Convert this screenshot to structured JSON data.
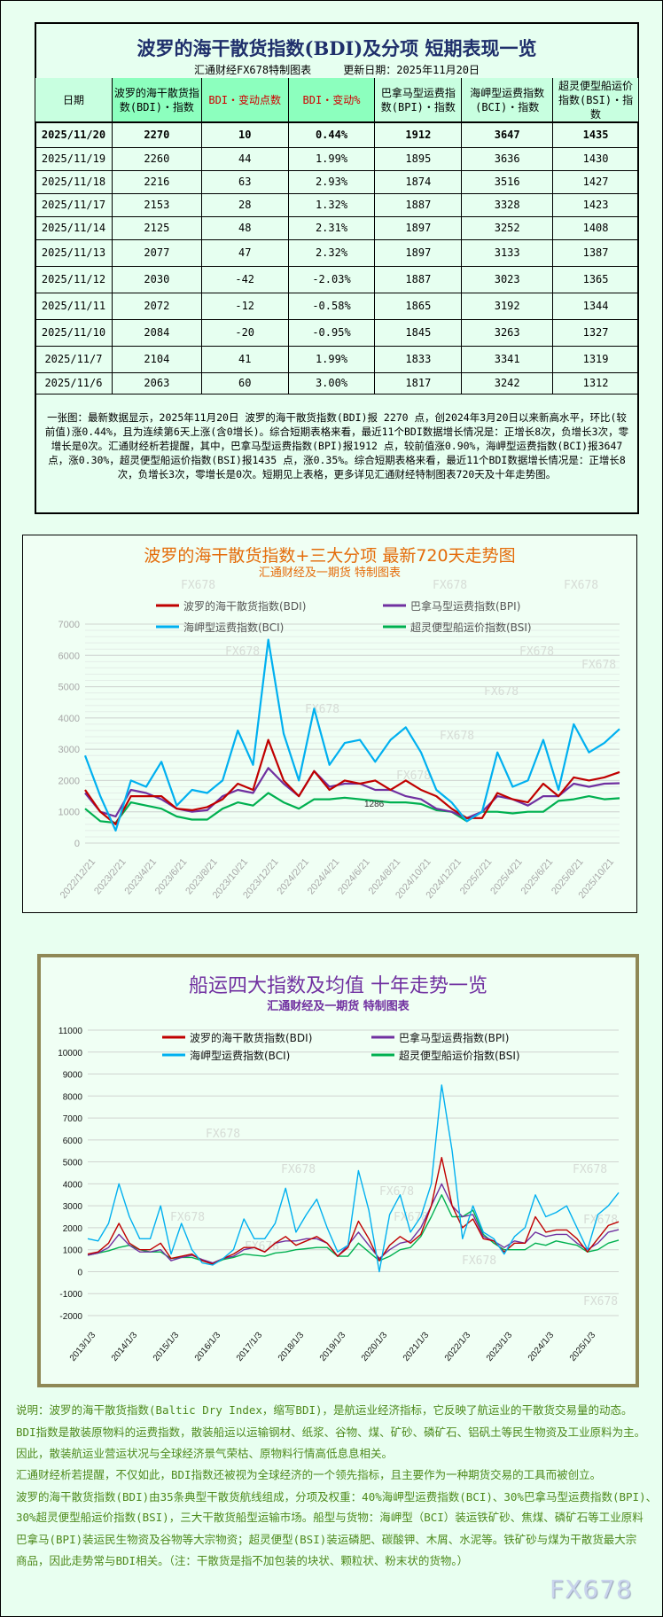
{
  "table": {
    "title": "波罗的海干散货指数(BDI)及分项 短期表现一览",
    "subtitle": "汇通财经FX678特制图表     更新日期：2025年11月20日",
    "headers": [
      "日期",
      "波罗的海干散货指数(BDI)・指数",
      "BDI・变动点数",
      "BDI・变动%",
      "巴拿马型运费指数(BPI)・指数",
      "海岬型运费指数(BCI)・指数",
      "超灵便型船运价指数(BSI)・指数"
    ],
    "rows": [
      [
        "2025/11/20",
        "2270",
        "10",
        "0.44%",
        "1912",
        "3647",
        "1435"
      ],
      [
        "2025/11/19",
        "2260",
        "44",
        "1.99%",
        "1895",
        "3636",
        "1430"
      ],
      [
        "2025/11/18",
        "2216",
        "63",
        "2.93%",
        "1874",
        "3516",
        "1427"
      ],
      [
        "2025/11/17",
        "2153",
        "28",
        "1.32%",
        "1887",
        "3328",
        "1423"
      ],
      [
        "2025/11/14",
        "2125",
        "48",
        "2.31%",
        "1897",
        "3252",
        "1408"
      ],
      [
        "2025/11/13",
        "2077",
        "47",
        "2.32%",
        "1897",
        "3133",
        "1387"
      ],
      [
        "2025/11/12",
        "2030",
        "-42",
        "-2.03%",
        "1887",
        "3023",
        "1365"
      ],
      [
        "2025/11/11",
        "2072",
        "-12",
        "-0.58%",
        "1865",
        "3192",
        "1344"
      ],
      [
        "2025/11/10",
        "2084",
        "-20",
        "-0.95%",
        "1845",
        "3263",
        "1327"
      ],
      [
        "2025/11/7",
        "2104",
        "41",
        "1.99%",
        "1833",
        "3341",
        "1319"
      ],
      [
        "2025/11/6",
        "2063",
        "60",
        "3.00%",
        "1817",
        "3242",
        "1312"
      ]
    ],
    "note": "一张图：最新数据显示，2025年11月20日 波罗的海干散货指数(BDI)报 2270 点，创2024年3月20日以来新高水平，环比(较前值)涨0.44%，且为连续第6天上涨(含0增长)。综合短期表格来看，最近11个BDI数据增长情况是：正增长8次，负增长3次，零增长是0次。汇通财经析若提醒，其中，巴拿马型运费指数(BPI)报1912 点，较前值涨0.90%，海岬型运费指数(BCI)报3647 点，涨0.30%，超灵便型船运价指数(BSI)报1435 点，涨0.35%。综合短期表格来看，最近11个BDI数据增长情况是：正增长8次，负增长3次，零增长是0次。短期见上表格，更多详见汇通财经特制图表720天及十年走势图。"
  },
  "colors": {
    "BDI": "#c00000",
    "BPI": "#7030a0",
    "BCI": "#00b0f0",
    "BSI": "#00b050"
  },
  "chart_data": [
    {
      "type": "line",
      "title": "波罗的海干散货指数+三大分项  最新720天走势图",
      "subtitle": "汇通财经及一期货  特制图表",
      "watermark": "FX678",
      "annotation": "1286",
      "ylim": [
        0,
        7000
      ],
      "yticks": [
        "0",
        "1000",
        "2000",
        "3000",
        "4000",
        "5000",
        "6000",
        "7000"
      ],
      "xticks": [
        "2022/12/21",
        "2023/2/21",
        "2023/4/21",
        "2023/6/21",
        "2023/8/21",
        "2023/10/21",
        "2023/12/21",
        "2024/2/21",
        "2024/4/21",
        "2024/6/21",
        "2024/8/21",
        "2024/10/21",
        "2024/12/21",
        "2025/2/21",
        "2025/4/21",
        "2025/6/21",
        "2025/8/21",
        "2025/10/21"
      ],
      "grid": true,
      "legend": "top",
      "x": [
        "2022-12",
        "2023-01",
        "2023-02",
        "2023-03",
        "2023-04",
        "2023-05",
        "2023-06",
        "2023-07",
        "2023-08",
        "2023-09",
        "2023-10",
        "2023-11",
        "2023-12",
        "2024-01",
        "2024-02",
        "2024-03",
        "2024-04",
        "2024-05",
        "2024-06",
        "2024-07",
        "2024-08",
        "2024-09",
        "2024-10",
        "2024-11",
        "2024-12",
        "2025-01",
        "2025-02",
        "2025-03",
        "2025-04",
        "2025-05",
        "2025-06",
        "2025-07",
        "2025-08",
        "2025-09",
        "2025-10",
        "2025-11"
      ],
      "series": [
        {
          "name": "波罗的海干散货指数(BDI)",
          "key": "BDI",
          "values": [
            1700,
            1000,
            600,
            1500,
            1500,
            1500,
            1100,
            1050,
            1150,
            1400,
            1900,
            1700,
            3300,
            2000,
            1500,
            2300,
            1700,
            2000,
            1900,
            2000,
            1700,
            2000,
            1700,
            1500,
            1100,
            800,
            800,
            1600,
            1400,
            1300,
            1900,
            1500,
            2100,
            2000,
            2100,
            2270
          ]
        },
        {
          "name": "巴拿马型运费指数(BPI)",
          "key": "BPI",
          "values": [
            1600,
            1000,
            850,
            1700,
            1600,
            1400,
            1100,
            1000,
            1050,
            1500,
            1700,
            1600,
            2400,
            1900,
            1500,
            2300,
            1800,
            1900,
            1900,
            1700,
            1700,
            1500,
            1400,
            1100,
            1000,
            800,
            1000,
            1500,
            1400,
            1200,
            1500,
            1500,
            1900,
            1800,
            1900,
            1912
          ]
        },
        {
          "name": "海岬型运费指数(BCI)",
          "key": "BCI",
          "values": [
            2800,
            1500,
            400,
            2000,
            1800,
            2600,
            1200,
            1700,
            1600,
            2000,
            3600,
            2500,
            6500,
            3500,
            2000,
            4300,
            2500,
            3200,
            3300,
            2600,
            3300,
            3700,
            2900,
            1700,
            1300,
            700,
            1000,
            2900,
            1800,
            2000,
            3300,
            1700,
            3800,
            2900,
            3200,
            3647
          ]
        },
        {
          "name": "超灵便型船运价指数(BSI)",
          "key": "BSI",
          "values": [
            1100,
            700,
            650,
            1300,
            1200,
            1100,
            850,
            750,
            750,
            1100,
            1300,
            1200,
            1600,
            1300,
            1100,
            1400,
            1400,
            1450,
            1400,
            1350,
            1300,
            1300,
            1250,
            1050,
            1000,
            700,
            1000,
            1000,
            950,
            1000,
            1000,
            1350,
            1400,
            1500,
            1400,
            1435
          ]
        }
      ]
    },
    {
      "type": "line",
      "title": "船运四大指数及均值 十年走势一览",
      "subtitle": "汇通财经及一期货 特制图表",
      "watermark": "FX678",
      "ylim": [
        -2000,
        11000
      ],
      "yticks": [
        "-2000",
        "-1000",
        "0",
        "1000",
        "2000",
        "3000",
        "4000",
        "5000",
        "6000",
        "7000",
        "8000",
        "9000",
        "10000",
        "11000"
      ],
      "xticks": [
        "2013/1/3",
        "2014/1/3",
        "2015/1/3",
        "2016/1/3",
        "2017/1/3",
        "2018/1/3",
        "2019/1/3",
        "2020/1/3",
        "2021/1/3",
        "2022/1/3",
        "2023/1/3",
        "2024/1/3",
        "2025/1/3"
      ],
      "grid": true,
      "legend": "top",
      "x_resolution": "quarterly 2013Q1-2025Q4",
      "series": [
        {
          "name": "波罗的海干散货指数(BDI)",
          "key": "BDI",
          "values": [
            800,
            900,
            1300,
            2200,
            1300,
            1000,
            1000,
            1300,
            600,
            700,
            800,
            500,
            350,
            600,
            800,
            1100,
            1100,
            900,
            1300,
            1600,
            1200,
            1400,
            1600,
            1300,
            700,
            1100,
            2300,
            1500,
            500,
            1200,
            1600,
            1300,
            1700,
            3000,
            5200,
            3000,
            2000,
            2400,
            1500,
            1400,
            900,
            1300,
            1300,
            2500,
            1800,
            1900,
            1900,
            1500,
            900,
            1500,
            2100,
            2270
          ]
        },
        {
          "name": "巴拿马型运费指数(BPI)",
          "key": "BPI",
          "values": [
            750,
            850,
            1100,
            1700,
            1200,
            900,
            900,
            1000,
            500,
            650,
            750,
            550,
            400,
            600,
            700,
            1000,
            1100,
            900,
            1300,
            1400,
            1400,
            1500,
            1500,
            1300,
            700,
            1200,
            1800,
            1200,
            600,
            1000,
            1300,
            1400,
            2000,
            3000,
            4000,
            3000,
            2500,
            2600,
            1600,
            1400,
            1100,
            1400,
            1300,
            1800,
            1600,
            1700,
            1700,
            1300,
            1000,
            1300,
            1800,
            1912
          ]
        },
        {
          "name": "海岬型运费指数(BCI)",
          "key": "BCI",
          "values": [
            1500,
            1400,
            2200,
            4000,
            2500,
            1500,
            1500,
            3000,
            800,
            2200,
            1000,
            400,
            300,
            600,
            1000,
            2400,
            1500,
            1500,
            2200,
            3800,
            1800,
            2600,
            3300,
            2000,
            900,
            1200,
            4600,
            2800,
            0,
            2600,
            3500,
            1800,
            2500,
            4000,
            8500,
            5500,
            1500,
            3000,
            1800,
            1500,
            800,
            1600,
            2000,
            3500,
            2500,
            2700,
            3000,
            2000,
            1000,
            2600,
            3000,
            3600
          ]
        },
        {
          "name": "超灵便型船运价指数(BSI)",
          "key": "BSI",
          "values": [
            750,
            850,
            950,
            1100,
            1200,
            1000,
            900,
            900,
            600,
            650,
            650,
            500,
            350,
            550,
            650,
            800,
            750,
            700,
            850,
            900,
            1000,
            1050,
            1100,
            1100,
            700,
            700,
            1300,
            900,
            500,
            700,
            1000,
            1100,
            1600,
            2500,
            3500,
            2500,
            2500,
            2800,
            1700,
            1300,
            1000,
            1000,
            1000,
            1300,
            1200,
            1400,
            1300,
            1200,
            900,
            1000,
            1300,
            1435
          ]
        }
      ]
    }
  ],
  "description": [
    "说明：波罗的海干散货指数(Baltic Dry Index，缩写BDI)，是航运业经济指标，它反映了航运业的干散货交易量的动态。",
    "BDI指数是散装原物料的运费指数，散装船运以运输钢材、纸浆、谷物、煤、矿砂、磷矿石、铝矾土等民生物资及工业原料为主。",
    "因此，散装航运业营运状况与全球经济景气荣枯、原物料行情高低息息相关。",
    "汇通财经析若提醒，不仅如此，BDI指数还被视为全球经济的一个领先指标，且主要作为一种期货交易的工具而被创立。",
    "波罗的海干散货指数(BDI)由35条典型干散货航线组成，分项及权重：40%海岬型运费指数(BCI)、30%巴拿马型运费指数(BPI)、",
    "30%超灵便型船运价指数(BSI)，三大干散货船型运输市场。船型与货物：海岬型（BCI）装运铁矿砂、焦煤、磷矿石等工业原料",
    "巴拿马(BPI)装运民生物资及谷物等大宗物资；超灵便型(BSI)装运磷肥、碳酸钾、木屑、水泥等。铁矿砂与煤为干散货最大宗",
    "商品，因此走势常与BDI相关。（注：干散货是指不加包装的块状、颗粒状、粉末状的货物。）"
  ],
  "logo": "FX678"
}
